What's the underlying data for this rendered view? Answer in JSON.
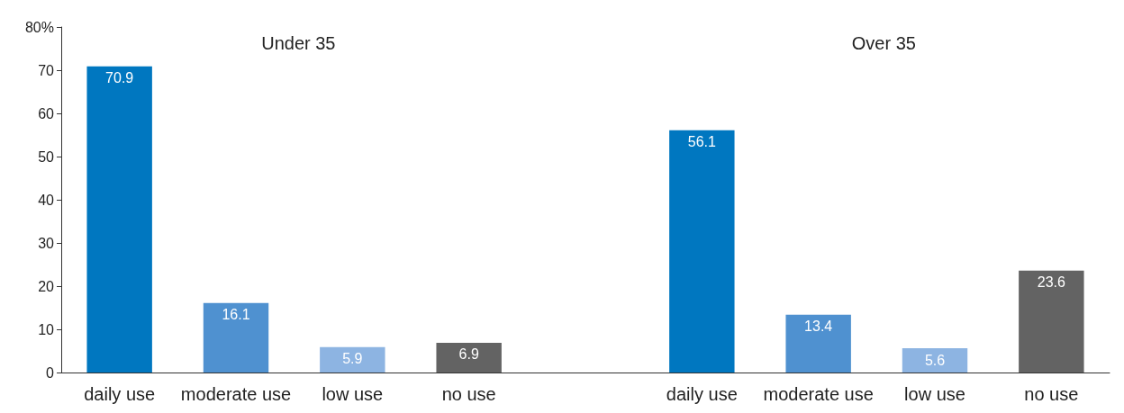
{
  "chart_data": {
    "type": "bar",
    "categories": [
      "daily use",
      "moderate use",
      "low use",
      "no use",
      null,
      "daily use",
      "moderate use",
      "low use",
      "no use"
    ],
    "values": [
      70.9,
      16.1,
      5.9,
      6.9,
      null,
      56.1,
      13.4,
      5.6,
      23.6
    ],
    "colors": [
      "#0077c0",
      "#4f91d0",
      "#8db4e2",
      "#636363",
      null,
      "#0077c0",
      "#4f91d0",
      "#8db4e2",
      "#636363"
    ],
    "ylim": [
      0,
      80
    ],
    "yticks": [
      0,
      10,
      20,
      30,
      40,
      50,
      60,
      70,
      {
        "value": 80,
        "label": "80%"
      }
    ],
    "data_labels": true,
    "grid": false,
    "annotations": [
      "Under 35",
      "Over 35"
    ]
  }
}
